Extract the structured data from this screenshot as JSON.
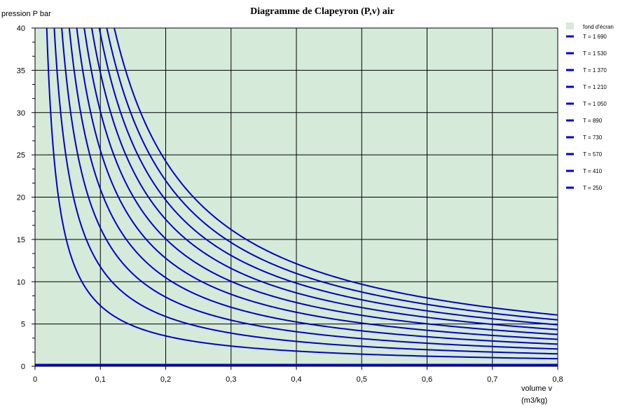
{
  "chart_data": {
    "type": "line",
    "title": "Diagramme de Clapeyron (P,v)  air",
    "ylabel": "pression  P bar",
    "xlabel_line1": "volume  v",
    "xlabel_line2": "(m3/kg)",
    "xlim": [
      0,
      0.8
    ],
    "ylim": [
      0,
      40
    ],
    "x_ticks": [
      "0",
      "0,1",
      "0,2",
      "0,3",
      "0,4",
      "0,5",
      "0,6",
      "0,7",
      "0,8"
    ],
    "y_ticks": [
      "0",
      "5",
      "10",
      "15",
      "20",
      "25",
      "30",
      "35",
      "40"
    ],
    "grid": true,
    "background_color": "#d5ead8",
    "line_color": "#0000cc",
    "legend_position": "right",
    "background_legend_label": "fond d'écran",
    "gas_constant_bar_m3_per_kg_K": 0.00287,
    "series": [
      {
        "name": "T = 1 690",
        "T": 1690
      },
      {
        "name": "T = 1 530",
        "T": 1530
      },
      {
        "name": "T = 1 370",
        "T": 1370
      },
      {
        "name": "T = 1 210",
        "T": 1210
      },
      {
        "name": "T = 1 050",
        "T": 1050
      },
      {
        "name": "T = 890",
        "T": 890
      },
      {
        "name": "T = 730",
        "T": 730
      },
      {
        "name": "T = 570",
        "T": 570
      },
      {
        "name": "T = 410",
        "T": 410
      },
      {
        "name": "T = 250",
        "T": 250
      }
    ],
    "series_values_at_x": [
      0.1,
      0.2,
      0.3,
      0.4,
      0.5,
      0.6,
      0.7,
      0.8
    ],
    "series_values": [
      [
        48.5,
        24.3,
        16.2,
        12.1,
        9.7,
        8.1,
        6.9,
        6.1
      ],
      [
        43.9,
        22.0,
        14.6,
        11.0,
        8.8,
        7.3,
        6.3,
        5.5
      ],
      [
        39.3,
        19.7,
        13.1,
        9.8,
        7.9,
        6.6,
        5.6,
        4.9
      ],
      [
        34.7,
        17.4,
        11.6,
        8.7,
        6.9,
        5.8,
        5.0,
        4.3
      ],
      [
        30.1,
        15.1,
        10.0,
        7.5,
        6.0,
        5.0,
        4.3,
        3.8
      ],
      [
        25.5,
        12.8,
        8.5,
        6.4,
        5.1,
        4.3,
        3.6,
        3.2
      ],
      [
        21.0,
        10.5,
        7.0,
        5.2,
        4.2,
        3.5,
        3.0,
        2.6
      ],
      [
        16.4,
        8.2,
        5.5,
        4.1,
        3.3,
        2.7,
        2.3,
        2.0
      ],
      [
        11.8,
        5.9,
        3.9,
        2.9,
        2.4,
        2.0,
        1.7,
        1.5
      ],
      [
        7.2,
        3.6,
        2.4,
        1.8,
        1.4,
        1.2,
        1.0,
        0.9
      ]
    ]
  }
}
